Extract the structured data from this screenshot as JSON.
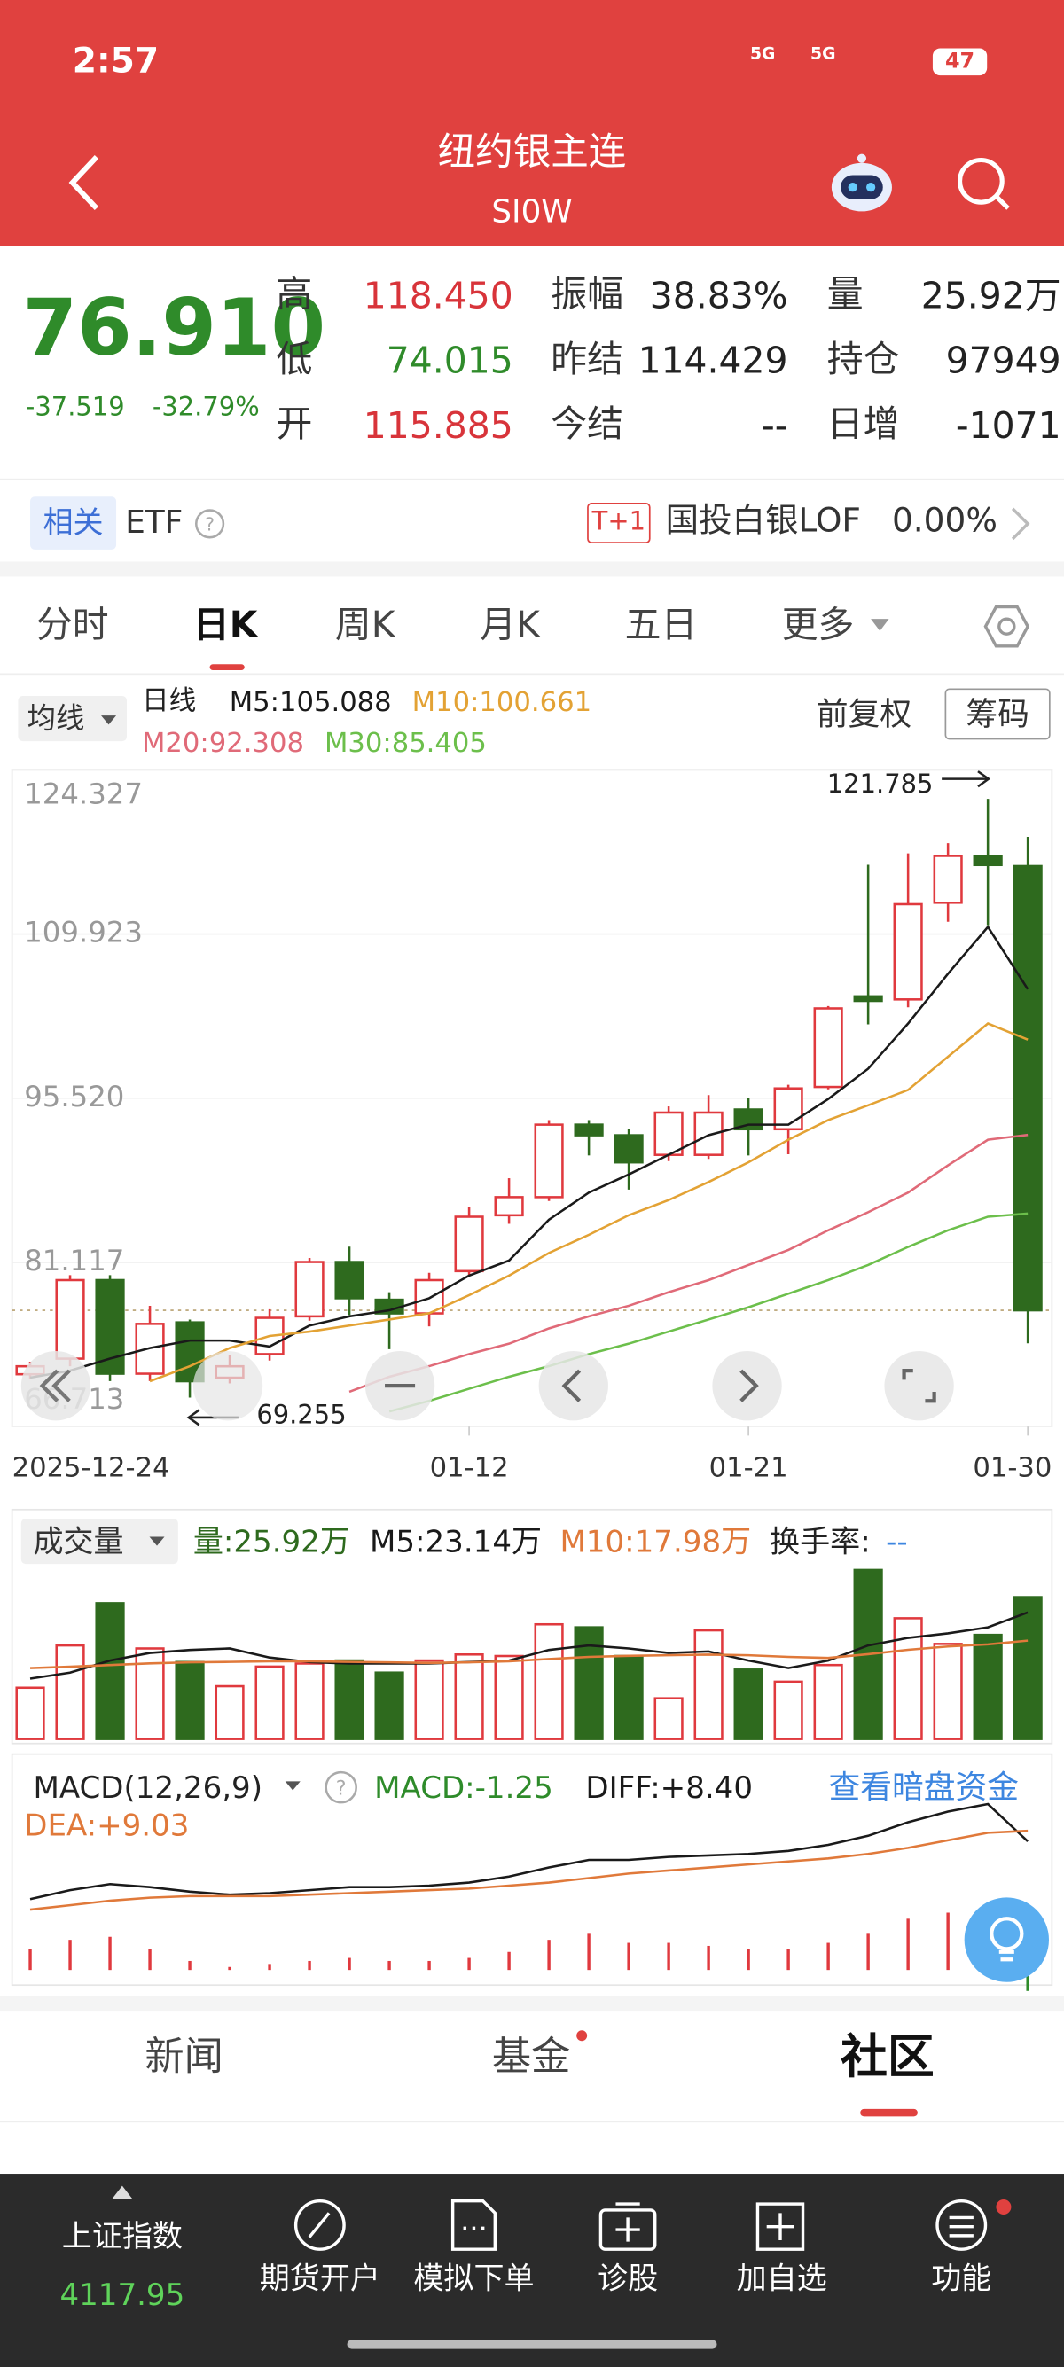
{
  "status": {
    "time": "2:57",
    "net1": "5G",
    "net2": "5G",
    "battery": "47"
  },
  "header": {
    "title": "纽约银主连",
    "code": "SI0W"
  },
  "quote": {
    "price": "76.910",
    "change": "-37.519",
    "pct": "-32.79%",
    "fields": [
      {
        "label": "高",
        "value": "118.450"
      },
      {
        "label": "低",
        "value": "74.015"
      },
      {
        "label": "开",
        "value": "115.885"
      },
      {
        "label": "振幅",
        "value": "38.83%"
      },
      {
        "label": "昨结",
        "value": "114.429"
      },
      {
        "label": "今结",
        "value": "--"
      },
      {
        "label": "量",
        "value": "25.92万"
      },
      {
        "label": "持仓",
        "value": "97949"
      },
      {
        "label": "日增",
        "value": "-1071"
      }
    ]
  },
  "etf": {
    "badge": "相关",
    "label": "ETF",
    "tag": "T+1",
    "name": "国投白银LOF",
    "pct": "0.00%"
  },
  "tabs": [
    "分时",
    "日K",
    "周K",
    "月K",
    "五日",
    "更多"
  ],
  "chart_data": [
    {
      "type": "candlestick",
      "ma_button": "均线",
      "period": "日线",
      "adjust": "前复权",
      "chips": "筹码",
      "up_color": "#e0393e",
      "down_color": "#2e6a1e",
      "grid": true,
      "high_label": "121.785",
      "low_label": "69.255",
      "categories": [
        "2025-12-24",
        null,
        null,
        null,
        null,
        null,
        null,
        null,
        null,
        null,
        null,
        "01-12",
        null,
        null,
        null,
        null,
        null,
        null,
        "01-21",
        null,
        null,
        null,
        null,
        null,
        null,
        "01-30"
      ],
      "open": [
        71.3,
        72.67,
        79.56,
        71.35,
        75.85,
        71.0,
        73.07,
        76.38,
        81.15,
        77.84,
        76.64,
        80.35,
        85.25,
        86.84,
        93.2,
        92.27,
        90.55,
        90.55,
        94.53,
        92.8,
        96.51,
        104.46,
        104.19,
        112.67,
        116.78,
        115.885
      ],
      "high": [
        72.4,
        80.0,
        80.0,
        77.3,
        76.1,
        73.0,
        77.0,
        81.5,
        82.5,
        78.5,
        80.2,
        86.0,
        88.5,
        93.6,
        93.6,
        92.8,
        94.8,
        95.8,
        95.5,
        96.7,
        103.6,
        116.0,
        117.0,
        117.9,
        121.785,
        118.45
      ],
      "low": [
        70.9,
        72.0,
        70.7,
        70.7,
        69.255,
        70.5,
        72.5,
        76.0,
        76.5,
        73.5,
        75.5,
        80.0,
        84.5,
        86.5,
        90.5,
        87.5,
        90.0,
        90.2,
        90.5,
        90.6,
        96.3,
        102.0,
        103.5,
        111.0,
        110.7,
        74.015
      ],
      "close": [
        72.0,
        79.56,
        71.35,
        75.72,
        70.69,
        72.0,
        76.25,
        81.15,
        77.97,
        76.64,
        79.56,
        85.12,
        86.84,
        93.2,
        92.27,
        89.89,
        94.26,
        94.26,
        92.8,
        96.38,
        103.4,
        104.06,
        112.54,
        116.78,
        115.98,
        76.91
      ],
      "ylim": [
        66.713,
        124.327
      ],
      "yticks": [
        124.327,
        109.923,
        {
          "value": 95.52,
          "label": "95.520"
        },
        81.117,
        66.713
      ],
      "series": [
        {
          "name": "M5:105.088",
          "color": "#1a1a1a",
          "values": [
            71.0,
            71.61,
            72.67,
            73.6,
            74.26,
            74.26,
            73.73,
            75.58,
            76.38,
            76.91,
            77.97,
            79.96,
            81.28,
            84.86,
            87.24,
            88.83,
            90.55,
            92.27,
            93.2,
            93.2,
            95.45,
            98.1,
            102.07,
            106.44,
            110.55,
            105.088
          ]
        },
        {
          "name": "M10:100.661",
          "color": "#e3a234",
          "values": [
            null,
            null,
            null,
            70.69,
            72.01,
            73.6,
            74.66,
            75.05,
            75.58,
            76.11,
            76.64,
            78.24,
            79.96,
            81.94,
            83.53,
            85.25,
            86.58,
            88.17,
            89.89,
            91.88,
            93.6,
            94.9,
            96.25,
            99.16,
            102.07,
            100.661
          ]
        },
        {
          "name": "M20:92.308",
          "color": "#e06a78",
          "values": [
            null,
            null,
            null,
            null,
            null,
            null,
            null,
            null,
            69.76,
            71.08,
            72.01,
            73.07,
            73.99,
            75.32,
            76.38,
            77.31,
            78.5,
            79.56,
            80.88,
            82.21,
            83.93,
            85.52,
            87.24,
            89.63,
            91.88,
            92.308
          ]
        },
        {
          "name": "M30:85.405",
          "color": "#6cbf4b",
          "values": [
            null,
            null,
            null,
            null,
            null,
            null,
            null,
            null,
            null,
            68.04,
            68.96,
            70.02,
            71.08,
            72.01,
            73.07,
            73.99,
            75.05,
            76.11,
            77.18,
            78.37,
            79.56,
            80.88,
            82.47,
            83.93,
            85.12,
            85.405
          ]
        }
      ]
    },
    {
      "type": "bar",
      "title": "成交量",
      "legend_label": "量:25.92万",
      "turnover": "换手率:",
      "turnover_value": "--",
      "values": [
        9.37,
        17.09,
        24.81,
        16.54,
        14.06,
        9.65,
        13.23,
        13.79,
        14.34,
        12.13,
        14.34,
        15.44,
        15.16,
        20.95,
        20.4,
        15.16,
        7.44,
        19.85,
        12.68,
        10.48,
        13.51,
        30.88,
        22.06,
        17.37,
        19.02,
        25.92
      ],
      "series": [
        {
          "name": "M5:23.14万",
          "color": "#1a1a1a",
          "values": [
            11.03,
            12.13,
            14.34,
            15.71,
            16.27,
            16.54,
            14.89,
            14.06,
            13.79,
            13.79,
            13.79,
            14.06,
            14.34,
            16.27,
            17.09,
            16.54,
            15.71,
            15.99,
            14.34,
            12.96,
            14.34,
            17.09,
            18.47,
            19.3,
            20.4,
            23.14
          ]
        },
        {
          "name": "M10:17.98万",
          "color": "#e0793a",
          "values": [
            12.96,
            13.2,
            13.5,
            13.8,
            14.0,
            14.1,
            14.2,
            14.2,
            14.1,
            14.0,
            13.9,
            14.0,
            14.2,
            14.6,
            15.0,
            15.2,
            15.3,
            15.4,
            15.3,
            15.0,
            14.8,
            15.5,
            16.3,
            16.9,
            17.3,
            17.98
          ]
        }
      ]
    },
    {
      "type": "macd",
      "title": "MACD(12,26,9)",
      "macd_label": "MACD:-1.25",
      "link": "查看暗盘资金",
      "values": [
        1.26,
        1.8,
        1.98,
        1.26,
        0.54,
        0.18,
        0.36,
        0.54,
        0.72,
        0.54,
        0.54,
        0.72,
        1.08,
        1.8,
        2.16,
        1.62,
        1.62,
        1.44,
        1.26,
        1.26,
        1.62,
        2.16,
        3.06,
        3.42,
        3.42,
        -1.25
      ],
      "series": [
        {
          "name": "DIFF:+8.40",
          "color": "#1a1a1a",
          "values": [
            4.95,
            5.49,
            5.85,
            5.67,
            5.4,
            5.22,
            5.31,
            5.49,
            5.67,
            5.67,
            5.76,
            5.94,
            6.3,
            6.84,
            7.29,
            7.29,
            7.47,
            7.56,
            7.65,
            7.83,
            8.19,
            8.73,
            9.54,
            10.17,
            10.62,
            8.4
          ]
        },
        {
          "name": "DEA:+9.03",
          "color": "#e0793a",
          "values": [
            4.32,
            4.59,
            4.86,
            5.04,
            5.13,
            5.13,
            5.13,
            5.22,
            5.31,
            5.4,
            5.49,
            5.58,
            5.76,
            5.94,
            6.21,
            6.48,
            6.66,
            6.84,
            7.02,
            7.2,
            7.38,
            7.65,
            8.01,
            8.46,
            8.91,
            9.03
          ]
        }
      ]
    }
  ],
  "news_tabs": [
    "新闻",
    "基金",
    "社区"
  ],
  "navbar": {
    "index_name": "上证指数",
    "index_value": "4117.95",
    "items": [
      "期货开户",
      "模拟下单",
      "诊股",
      "加自选",
      "功能"
    ]
  }
}
